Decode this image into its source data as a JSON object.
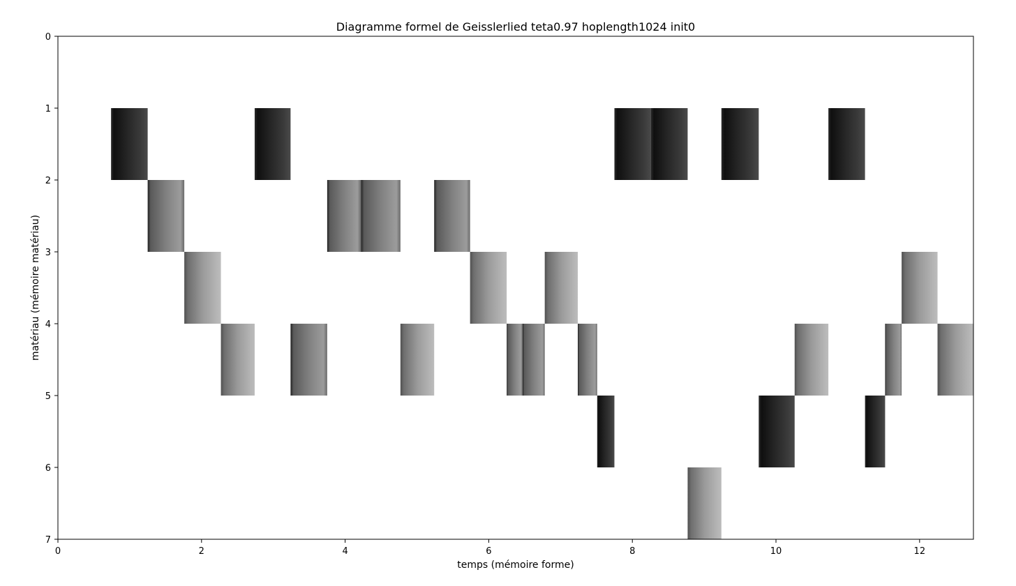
{
  "chart_data": {
    "type": "heatmap",
    "title": "Diagramme formel de Geisslerlied  teta0.97 hoplength1024 init0",
    "xlabel": "temps (mémoire forme)",
    "ylabel": "matériau (mémoire matériau)",
    "xlim": [
      0,
      12.75
    ],
    "ylim": [
      7,
      0
    ],
    "y_inverted": true,
    "grid": false,
    "x_ticks": [
      0,
      2,
      4,
      6,
      8,
      10,
      12
    ],
    "y_ticks": [
      0,
      1,
      2,
      3,
      4,
      5,
      6,
      7
    ],
    "x_tick_labels": [
      "0",
      "2",
      "4",
      "6",
      "8",
      "10",
      "12"
    ],
    "y_tick_labels": [
      "0",
      "1",
      "2",
      "3",
      "4",
      "5",
      "6",
      "7"
    ],
    "colormap": "gray (dark = early in segment, light = late)",
    "segments": [
      {
        "x0": 0.74,
        "x1": 1.25,
        "row": 1,
        "tone": "dark"
      },
      {
        "x0": 1.25,
        "x1": 1.76,
        "row": 2,
        "tone": "mid"
      },
      {
        "x0": 1.76,
        "x1": 2.27,
        "row": 3,
        "tone": "light"
      },
      {
        "x0": 2.27,
        "x1": 2.74,
        "row": 4,
        "tone": "light"
      },
      {
        "x0": 2.74,
        "x1": 3.24,
        "row": 1,
        "tone": "dark"
      },
      {
        "x0": 3.24,
        "x1": 3.75,
        "row": 4,
        "tone": "mid"
      },
      {
        "x0": 3.75,
        "x1": 4.22,
        "row": 2,
        "tone": "mid"
      },
      {
        "x0": 4.22,
        "x1": 4.77,
        "row": 2,
        "tone": "mid"
      },
      {
        "x0": 4.77,
        "x1": 5.24,
        "row": 4,
        "tone": "light"
      },
      {
        "x0": 5.24,
        "x1": 5.74,
        "row": 2,
        "tone": "mid"
      },
      {
        "x0": 5.74,
        "x1": 6.25,
        "row": 3,
        "tone": "light"
      },
      {
        "x0": 6.25,
        "x1": 6.47,
        "row": 4,
        "tone": "mid"
      },
      {
        "x0": 6.47,
        "x1": 6.78,
        "row": 4,
        "tone": "mid"
      },
      {
        "x0": 6.78,
        "x1": 7.24,
        "row": 3,
        "tone": "light"
      },
      {
        "x0": 7.24,
        "x1": 7.51,
        "row": 4,
        "tone": "mid"
      },
      {
        "x0": 7.51,
        "x1": 7.75,
        "row": 5,
        "tone": "dark"
      },
      {
        "x0": 7.75,
        "x1": 8.26,
        "row": 1,
        "tone": "dark"
      },
      {
        "x0": 8.26,
        "x1": 8.77,
        "row": 1,
        "tone": "dark"
      },
      {
        "x0": 8.77,
        "x1": 9.24,
        "row": 6,
        "tone": "light"
      },
      {
        "x0": 9.24,
        "x1": 9.76,
        "row": 1,
        "tone": "dark"
      },
      {
        "x0": 9.76,
        "x1": 10.26,
        "row": 5,
        "tone": "dark"
      },
      {
        "x0": 10.26,
        "x1": 10.73,
        "row": 4,
        "tone": "light"
      },
      {
        "x0": 10.73,
        "x1": 11.24,
        "row": 1,
        "tone": "dark"
      },
      {
        "x0": 11.24,
        "x1": 11.52,
        "row": 5,
        "tone": "dark"
      },
      {
        "x0": 11.52,
        "x1": 11.75,
        "row": 4,
        "tone": "mid"
      },
      {
        "x0": 11.75,
        "x1": 12.25,
        "row": 3,
        "tone": "light"
      },
      {
        "x0": 12.25,
        "x1": 12.75,
        "row": 4,
        "tone": "light"
      }
    ]
  }
}
